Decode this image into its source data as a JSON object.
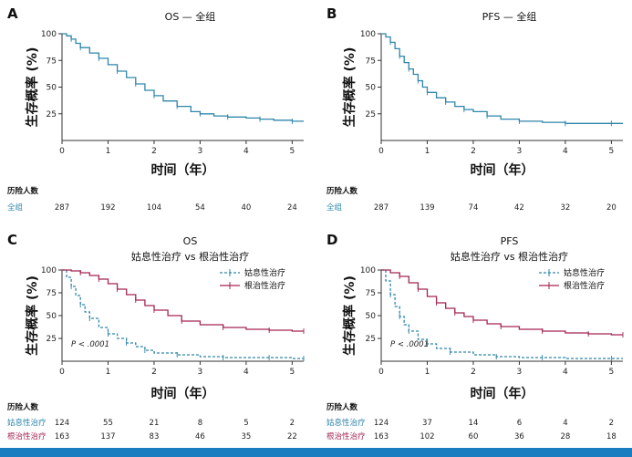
{
  "figure": {
    "bottom_bar_color": "#1a7dbf"
  },
  "risk_table_title": "历险人数",
  "panels": [
    {
      "letter": "A",
      "title_lines": [
        "OS — 全组"
      ],
      "xlabel": "时间（年）",
      "ylabel": "生存概率 (%)",
      "risk_rows": [
        {
          "label": "全组",
          "color": "#2e86ab",
          "values": [
            "287",
            "192",
            "104",
            "54",
            "40",
            "24"
          ]
        }
      ]
    },
    {
      "letter": "B",
      "title_lines": [
        "PFS — 全组"
      ],
      "xlabel": "时间（年）",
      "ylabel": "生存概率 (%)",
      "risk_rows": [
        {
          "label": "全组",
          "color": "#2e86ab",
          "values": [
            "287",
            "139",
            "74",
            "42",
            "32",
            "20"
          ]
        }
      ]
    },
    {
      "letter": "C",
      "title_lines": [
        "OS",
        "姑息性治疗 vs 根治性治疗"
      ],
      "xlabel": "时间（年）",
      "ylabel": "生存概率 (%)",
      "pvalue": "P < .0001",
      "legend": [
        "姑息性治疗",
        "根治性治疗"
      ],
      "risk_rows": [
        {
          "label": "姑息性治疗",
          "color": "#2e86ab",
          "values": [
            "124",
            "55",
            "21",
            "8",
            "5",
            "2"
          ]
        },
        {
          "label": "根治性治疗",
          "color": "#a32452",
          "values": [
            "163",
            "137",
            "83",
            "46",
            "35",
            "22"
          ]
        }
      ]
    },
    {
      "letter": "D",
      "title_lines": [
        "PFS",
        "姑息性治疗 vs 根治性治疗"
      ],
      "xlabel": "时间（年）",
      "ylabel": "生存概率 (%)",
      "pvalue": "P < .0001",
      "legend": [
        "姑息性治疗",
        "根治性治疗"
      ],
      "risk_rows": [
        {
          "label": "姑息性治疗",
          "color": "#2e86ab",
          "values": [
            "124",
            "37",
            "14",
            "6",
            "4",
            "2"
          ]
        },
        {
          "label": "根治性治疗",
          "color": "#a32452",
          "values": [
            "163",
            "102",
            "60",
            "36",
            "28",
            "18"
          ]
        }
      ]
    }
  ],
  "chart_data": [
    {
      "type": "line",
      "title": "OS — 全组",
      "xlabel": "时间（年）",
      "ylabel": "生存概率 (%)",
      "xlim": [
        0,
        5.25
      ],
      "ylim": [
        0,
        100
      ],
      "xticks": [
        0,
        1,
        2,
        3,
        4,
        5
      ],
      "yticks": [
        25,
        50,
        75,
        100
      ],
      "series": [
        {
          "color": "#2e86ab",
          "style": "solid",
          "x": [
            0,
            0.1,
            0.2,
            0.3,
            0.4,
            0.6,
            0.8,
            1.0,
            1.2,
            1.4,
            1.6,
            1.8,
            2.0,
            2.2,
            2.5,
            2.8,
            3.0,
            3.3,
            3.6,
            4.0,
            4.3,
            4.6,
            5.0,
            5.25
          ],
          "y": [
            100,
            98,
            95,
            91,
            87,
            82,
            77,
            71,
            65,
            59,
            53,
            47,
            42,
            37,
            32,
            27,
            25,
            23,
            22,
            21,
            20,
            19,
            18,
            18
          ]
        }
      ]
    },
    {
      "type": "line",
      "title": "PFS — 全组",
      "xlabel": "时间（年）",
      "ylabel": "生存概率 (%)",
      "xlim": [
        0,
        5.25
      ],
      "ylim": [
        0,
        100
      ],
      "xticks": [
        0,
        1,
        2,
        3,
        4,
        5
      ],
      "yticks": [
        25,
        50,
        75,
        100
      ],
      "series": [
        {
          "color": "#2e86ab",
          "style": "solid",
          "x": [
            0,
            0.1,
            0.2,
            0.3,
            0.4,
            0.5,
            0.6,
            0.7,
            0.8,
            0.9,
            1.0,
            1.2,
            1.4,
            1.6,
            1.8,
            2.0,
            2.3,
            2.6,
            3.0,
            3.5,
            4.0,
            4.5,
            5.0,
            5.25
          ],
          "y": [
            100,
            97,
            92,
            86,
            79,
            73,
            67,
            62,
            56,
            50,
            45,
            40,
            36,
            32,
            29,
            27,
            23,
            20,
            18,
            17,
            16,
            16,
            16,
            16
          ]
        }
      ]
    },
    {
      "type": "line",
      "title": "OS 姑息性治疗 vs 根治性治疗",
      "xlabel": "时间（年）",
      "ylabel": "生存概率 (%)",
      "xlim": [
        0,
        5.25
      ],
      "ylim": [
        0,
        100
      ],
      "xticks": [
        0,
        1,
        2,
        3,
        4,
        5
      ],
      "yticks": [
        25,
        50,
        75,
        100
      ],
      "annotation": "P < .0001",
      "series": [
        {
          "name": "姑息性治疗",
          "color": "#2e86ab",
          "style": "dashed",
          "x": [
            0,
            0.1,
            0.2,
            0.3,
            0.4,
            0.5,
            0.6,
            0.8,
            1.0,
            1.2,
            1.4,
            1.6,
            1.8,
            2.0,
            2.5,
            3.0,
            3.5,
            4.0,
            4.5,
            5.0,
            5.25
          ],
          "y": [
            100,
            92,
            82,
            72,
            62,
            54,
            47,
            37,
            30,
            25,
            20,
            16,
            12,
            9,
            7,
            5,
            4,
            4,
            4,
            3,
            3
          ]
        },
        {
          "name": "根治性治疗",
          "color": "#a32452",
          "style": "solid",
          "x": [
            0,
            0.2,
            0.4,
            0.6,
            0.8,
            1.0,
            1.2,
            1.4,
            1.6,
            1.8,
            2.0,
            2.3,
            2.6,
            3.0,
            3.5,
            4.0,
            4.5,
            5.0,
            5.25
          ],
          "y": [
            100,
            99,
            97,
            94,
            90,
            85,
            79,
            73,
            67,
            61,
            56,
            50,
            44,
            40,
            37,
            35,
            34,
            33,
            33
          ]
        }
      ]
    },
    {
      "type": "line",
      "title": "PFS 姑息性治疗 vs 根治性治疗",
      "xlabel": "时间（年）",
      "ylabel": "生存概率 (%)",
      "xlim": [
        0,
        5.25
      ],
      "ylim": [
        0,
        100
      ],
      "xticks": [
        0,
        1,
        2,
        3,
        4,
        5
      ],
      "yticks": [
        25,
        50,
        75,
        100
      ],
      "annotation": "P < .0001",
      "series": [
        {
          "name": "姑息性治疗",
          "color": "#2e86ab",
          "style": "dashed",
          "x": [
            0,
            0.1,
            0.2,
            0.3,
            0.4,
            0.5,
            0.6,
            0.8,
            1.0,
            1.2,
            1.5,
            2.0,
            2.5,
            3.0,
            3.5,
            4.0,
            5.0,
            5.25
          ],
          "y": [
            100,
            88,
            73,
            60,
            49,
            40,
            33,
            24,
            19,
            14,
            10,
            7,
            5,
            4,
            4,
            3,
            3,
            3
          ]
        },
        {
          "name": "根治性治疗",
          "color": "#a32452",
          "style": "solid",
          "x": [
            0,
            0.2,
            0.4,
            0.6,
            0.8,
            1.0,
            1.2,
            1.4,
            1.6,
            1.8,
            2.0,
            2.3,
            2.6,
            3.0,
            3.5,
            4.0,
            4.5,
            5.0,
            5.25
          ],
          "y": [
            100,
            97,
            93,
            86,
            79,
            71,
            64,
            58,
            53,
            49,
            45,
            41,
            38,
            35,
            33,
            31,
            30,
            29,
            29
          ]
        }
      ]
    }
  ]
}
